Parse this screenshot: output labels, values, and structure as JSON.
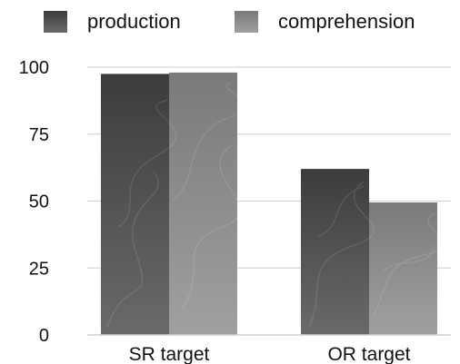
{
  "chart_data": {
    "type": "bar",
    "categories": [
      "SR target",
      "OR target"
    ],
    "series": [
      {
        "name": "production",
        "values": [
          97.5,
          62
        ],
        "color": "#4a4a4a"
      },
      {
        "name": "comprehension",
        "values": [
          98,
          49.5
        ],
        "color": "#8a8a8a"
      }
    ],
    "ylim": [
      0,
      100
    ],
    "yticks": [
      0,
      25,
      50,
      75,
      100
    ],
    "grid": true,
    "legend_position": "top"
  }
}
